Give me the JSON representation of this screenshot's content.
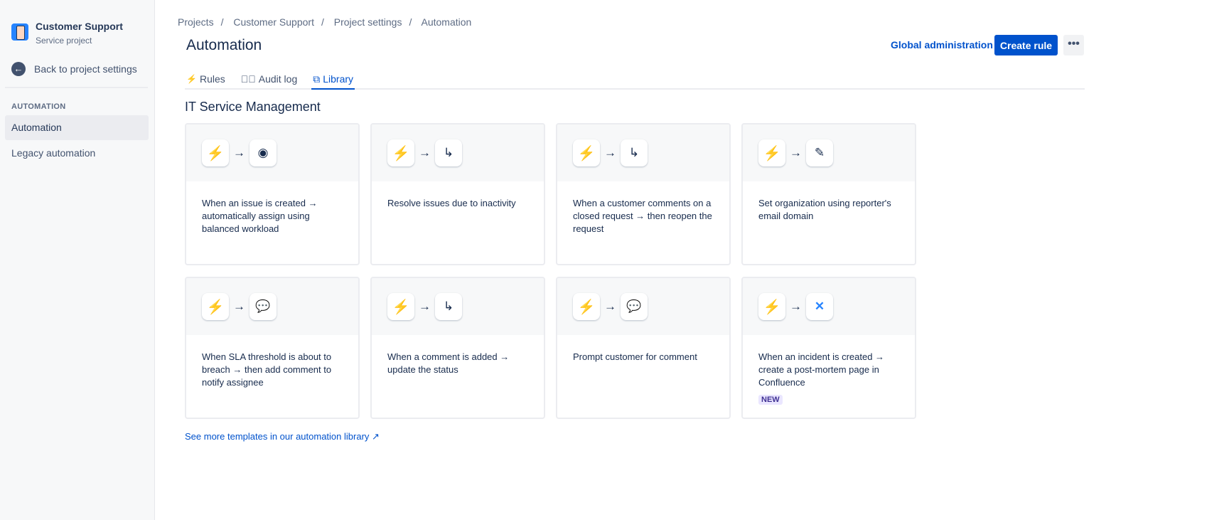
{
  "sidebar": {
    "project_name": "Customer Support",
    "project_type": "Service project",
    "back_label": "Back to project settings",
    "section": "AUTOMATION",
    "items": [
      {
        "label": "Automation",
        "active": true
      },
      {
        "label": "Legacy automation",
        "active": false
      }
    ]
  },
  "breadcrumb": [
    "Projects",
    "Customer Support",
    "Project settings",
    "Automation"
  ],
  "header": {
    "title": "Automation",
    "global_admin": "Global administration",
    "create_rule": "Create rule",
    "more": "•••"
  },
  "tabs": [
    {
      "label": "Rules",
      "icon": "bolt-icon"
    },
    {
      "label": "Audit log",
      "icon": "check-circle-icon"
    },
    {
      "label": "Library",
      "icon": "copy-icon",
      "active": true
    }
  ],
  "section_title": "IT Service Management",
  "cards": [
    {
      "action_icon": "person-icon",
      "text": "When an issue is created → automatically assign using balanced workload"
    },
    {
      "action_icon": "transition-icon",
      "text": "Resolve issues due to inactivity"
    },
    {
      "action_icon": "transition-icon",
      "text": "When a customer comments on a closed request → then reopen the request"
    },
    {
      "action_icon": "edit-icon",
      "text": "Set organization using reporter's email domain"
    },
    {
      "action_icon": "comment-add-icon",
      "text": "When SLA threshold is about to breach → then add comment to notify assignee"
    },
    {
      "action_icon": "transition-icon",
      "text": "When a comment is added → update the status"
    },
    {
      "action_icon": "comment-add-icon",
      "text": "Prompt customer for comment"
    },
    {
      "action_icon": "confluence-icon",
      "text": "When an incident is created → create a post-mortem page in Confluence",
      "badge": "NEW"
    }
  ],
  "footer_link": "See more templates in our automation library ↗",
  "colors": {
    "primary": "#0052cc",
    "bolt": "#2684ff"
  }
}
